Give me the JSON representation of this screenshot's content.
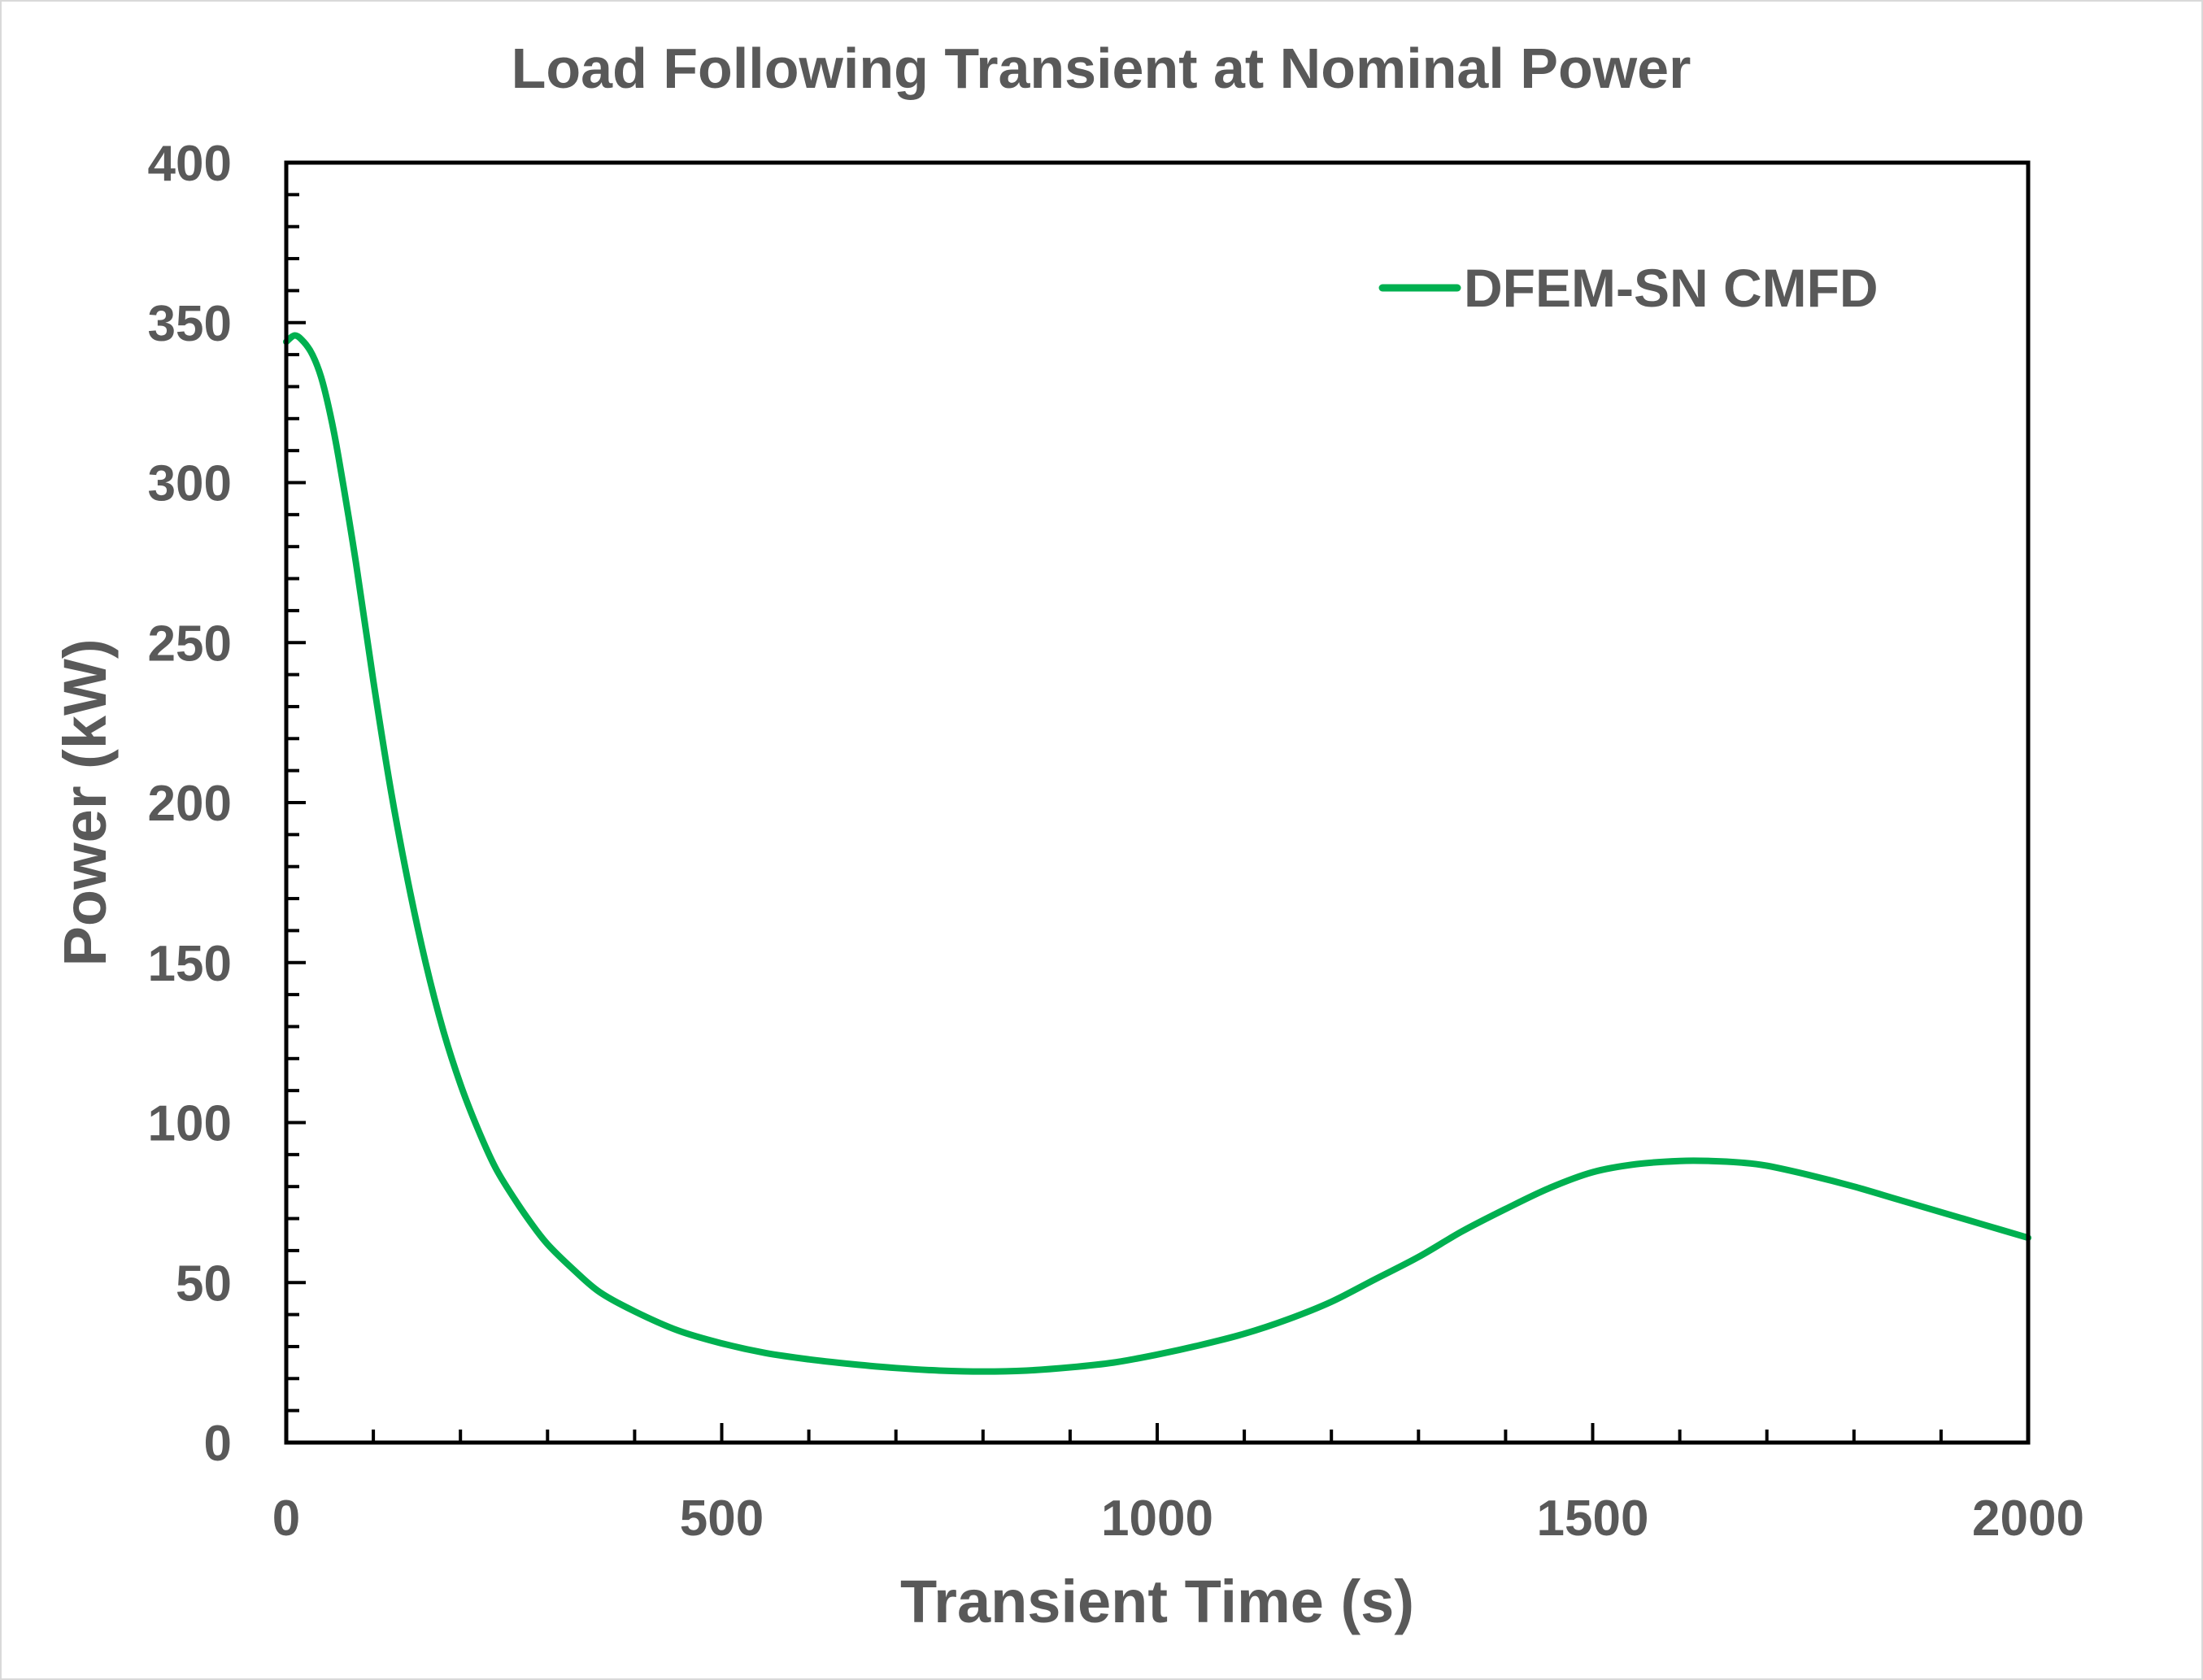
{
  "chart_data": {
    "type": "line",
    "title": "Load Following Transient at Nominal Power",
    "xlabel": "Transient Time (s)",
    "ylabel": "Power (kW)",
    "xlim": [
      0,
      2000
    ],
    "ylim": [
      0,
      400
    ],
    "x_ticks": [
      0,
      500,
      1000,
      1500,
      2000
    ],
    "y_ticks": [
      0,
      50,
      100,
      150,
      200,
      250,
      300,
      350,
      400
    ],
    "x_tick_labels": [
      "0",
      "500",
      "1000",
      "1500",
      "2000"
    ],
    "y_tick_labels": [
      "0",
      "50",
      "100",
      "150",
      "200",
      "250",
      "300",
      "350",
      "400"
    ],
    "x_minor_step": 100,
    "y_minor_step": 10,
    "grid": false,
    "legend_position": "top-right",
    "series": [
      {
        "name": "DFEM-SN CMFD",
        "color": "#00B050",
        "x": [
          0,
          10,
          20,
          30,
          40,
          50,
          60,
          80,
          100,
          120,
          140,
          160,
          180,
          200,
          220,
          240,
          260,
          280,
          300,
          330,
          360,
          400,
          450,
          500,
          550,
          600,
          650,
          700,
          750,
          800,
          850,
          900,
          950,
          1000,
          1050,
          1100,
          1150,
          1200,
          1250,
          1300,
          1350,
          1400,
          1450,
          1500,
          1550,
          1600,
          1635,
          1670,
          1700,
          1750,
          1800,
          1850,
          1900,
          1950,
          2000
        ],
        "y": [
          344,
          346,
          344,
          340,
          333,
          322,
          308,
          275,
          238,
          204,
          175,
          150,
          129,
          112,
          98,
          86,
          77,
          69,
          62,
          54,
          47,
          41,
          35,
          31,
          28,
          26,
          24.5,
          23.3,
          22.5,
          22.2,
          22.5,
          23.5,
          25,
          27.5,
          30.5,
          34,
          38.5,
          44,
          51,
          58,
          66,
          73,
          79.5,
          84.5,
          87,
          88,
          88,
          87.5,
          86.5,
          83.5,
          80,
          76,
          72,
          68,
          64
        ]
      }
    ]
  }
}
